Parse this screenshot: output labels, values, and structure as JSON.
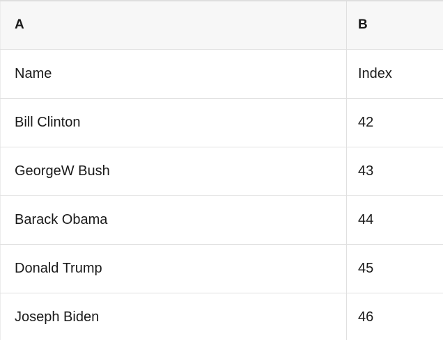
{
  "app": {
    "view": "spreadsheet-table-preview"
  },
  "colors": {
    "background": "#ffffff",
    "header_background": "#f7f7f7",
    "border": "#e0e0e0",
    "text": "#1a1a1a"
  },
  "table": {
    "column_headers": [
      "A",
      "B"
    ],
    "field_labels": {
      "name": "Name",
      "index": "Index"
    },
    "rows": [
      [
        "Name",
        "Index"
      ],
      [
        "Bill Clinton",
        "42"
      ],
      [
        "GeorgeW Bush",
        "43"
      ],
      [
        "Barack Obama",
        "44"
      ],
      [
        "Donald Trump",
        "45"
      ],
      [
        "Joseph Biden",
        "46"
      ]
    ]
  }
}
